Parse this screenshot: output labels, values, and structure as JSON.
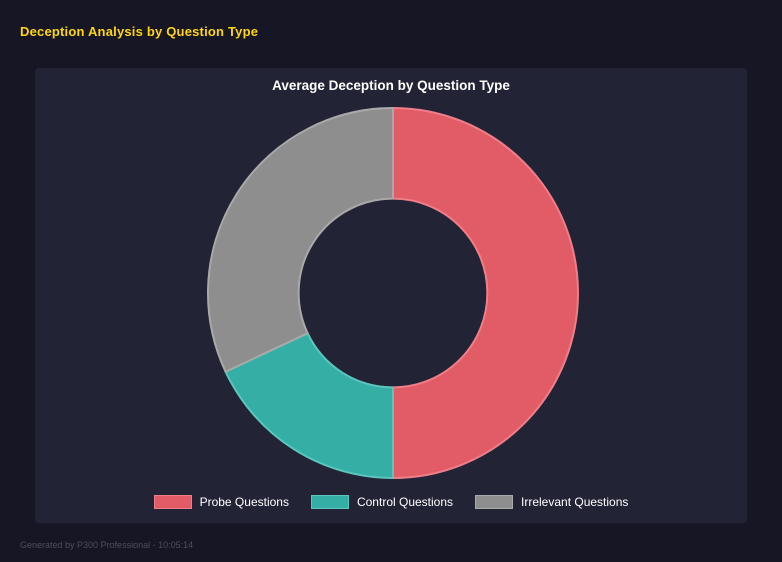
{
  "header": {
    "title": "Deception Analysis by Question Type"
  },
  "chart_data": {
    "type": "pie",
    "variant": "donut",
    "title": "Average Deception by Question Type",
    "cutout_ratio": 0.51,
    "legend_position": "bottom",
    "segments": [
      {
        "label": "Probe Questions",
        "value_pct": 50,
        "color": "#e25c68",
        "border": "#ef7e89"
      },
      {
        "label": "Control Questions",
        "value_pct": 18,
        "color": "#35afa6",
        "border": "#5cc5bd"
      },
      {
        "label": "Irrelevant Questions",
        "value_pct": 32,
        "color": "#8e8e8e",
        "border": "#a9a9a9"
      }
    ]
  },
  "footer": {
    "text": "Generated by P300 Professional - 10:05:14"
  },
  "colors": {
    "page_background": "#161624",
    "panel_background": "#232336",
    "title_accent": "#ffd60a",
    "chart_title_text": "#ffffff",
    "legend_text": "#ffffff",
    "footer_text": "#4d4d5c"
  }
}
